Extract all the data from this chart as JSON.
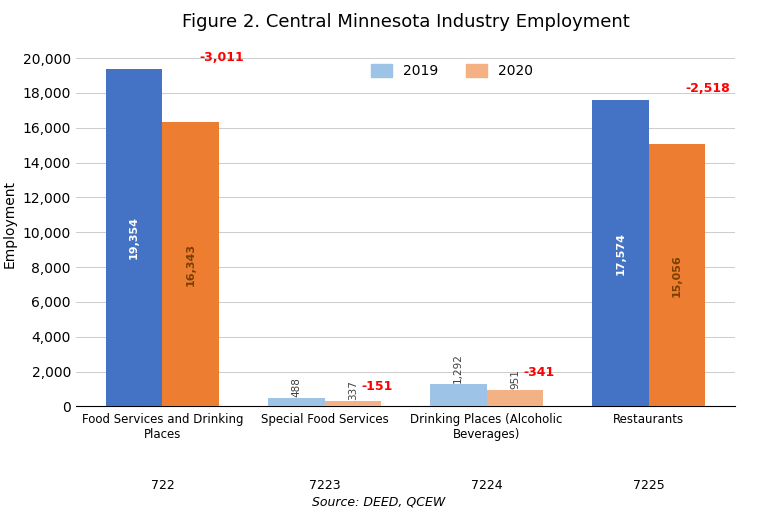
{
  "title": "Figure 2. Central Minnesota Industry Employment",
  "ylabel": "Employment",
  "source": "Source: DEED, QCEW",
  "categories": [
    "Food Services and Drinking\nPlaces",
    "Special Food Services",
    "Drinking Places (Alcoholic\nBeverages)",
    "Restaurants"
  ],
  "codes": [
    "722",
    "7223",
    "7224",
    "7225"
  ],
  "values_2019": [
    19354,
    488,
    1292,
    17574
  ],
  "values_2020": [
    16343,
    337,
    951,
    15056
  ],
  "changes": [
    -3011,
    -151,
    -341,
    -2518
  ],
  "color_2019_strong": "#4472C4",
  "color_2019_light": "#9DC3E6",
  "color_2020_strong": "#ED7D31",
  "color_2020_light": "#F4B183",
  "change_color": "#FF0000",
  "ylim": [
    0,
    21000
  ],
  "yticks": [
    0,
    2000,
    4000,
    6000,
    8000,
    10000,
    12000,
    14000,
    16000,
    18000,
    20000
  ],
  "bar_width": 0.35,
  "legend_labels": [
    "2019",
    "2020"
  ],
  "strong_bar_indices": [
    0,
    3
  ],
  "light_bar_indices": [
    1,
    2
  ]
}
